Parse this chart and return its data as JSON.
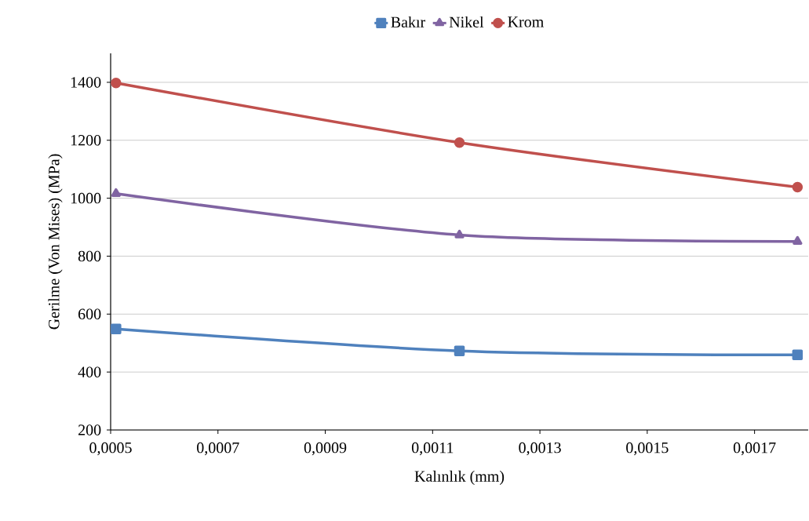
{
  "chart_data": {
    "type": "line",
    "xlabel": "Kalınlık (mm)",
    "ylabel": "Gerilme (Von Mises) (MPa)",
    "x": [
      0.00051,
      0.00115,
      0.00178
    ],
    "series": [
      {
        "name": "Bakır",
        "color": "#4f81bd",
        "marker": "square",
        "values": [
          549,
          473,
          459
        ]
      },
      {
        "name": "Nikel",
        "color": "#8064a2",
        "marker": "triangle",
        "values": [
          1016,
          873,
          851
        ]
      },
      {
        "name": "Krom",
        "color": "#c0504d",
        "marker": "circle",
        "values": [
          1398,
          1192,
          1038
        ]
      }
    ],
    "xlim": [
      0.0005,
      0.0018
    ],
    "xticks": [
      {
        "value": 0.0005,
        "label": "0,0005"
      },
      {
        "value": 0.0007,
        "label": "0,0007"
      },
      {
        "value": 0.0009,
        "label": "0,0009"
      },
      {
        "value": 0.0011,
        "label": "0,0011"
      },
      {
        "value": 0.0013,
        "label": "0,0013"
      },
      {
        "value": 0.0015,
        "label": "0,0015"
      },
      {
        "value": 0.0017,
        "label": "0,0017"
      }
    ],
    "ylim": [
      200,
      1500
    ],
    "yticks": [
      200,
      400,
      600,
      800,
      1000,
      1200,
      1400
    ],
    "grid": "y",
    "legend": "top",
    "line_style": "solid"
  }
}
